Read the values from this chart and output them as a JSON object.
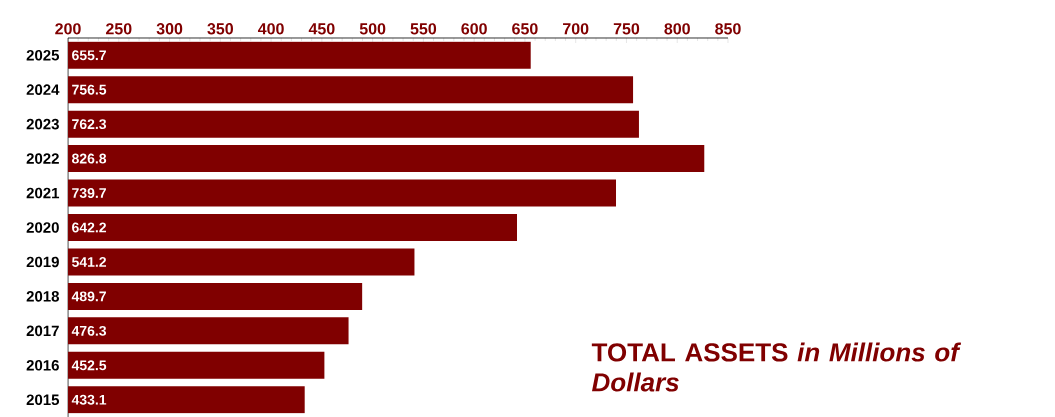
{
  "chart_data": {
    "type": "bar",
    "orientation": "horizontal",
    "title": "**TOTAL ASSETS** *in Millions of Dollars*",
    "categories": [
      "2025",
      "2024",
      "2023",
      "2022",
      "2021",
      "2020",
      "2019",
      "2018",
      "2017",
      "2016",
      "2015"
    ],
    "values": [
      655.7,
      756.5,
      762.3,
      826.8,
      739.7,
      642.2,
      541.2,
      489.7,
      476.3,
      452.5,
      433.1
    ],
    "color": "#800000",
    "xlim": [
      200,
      850
    ],
    "xticks": [
      200,
      250,
      300,
      350,
      400,
      450,
      500,
      550,
      600,
      650,
      700,
      750,
      800,
      850
    ],
    "data_labels": true
  }
}
